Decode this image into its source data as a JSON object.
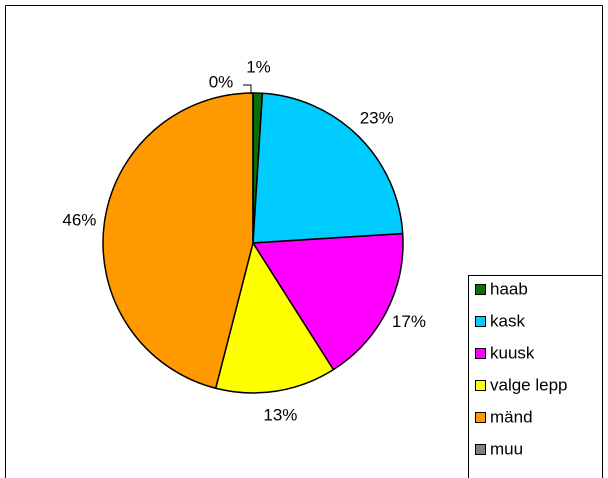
{
  "chart_data": {
    "type": "pie",
    "categories": [
      "haab",
      "kask",
      "kuusk",
      "valge lepp",
      "mänd",
      "muu"
    ],
    "values": [
      1,
      23,
      17,
      13,
      46,
      0
    ],
    "value_labels": [
      "1%",
      "23%",
      "17%",
      "13%",
      "46%",
      "0%"
    ],
    "colors": [
      "#0b6e0b",
      "#00ccff",
      "#ff00ff",
      "#ffff00",
      "#ff9900",
      "#808080"
    ],
    "legend": "right"
  }
}
